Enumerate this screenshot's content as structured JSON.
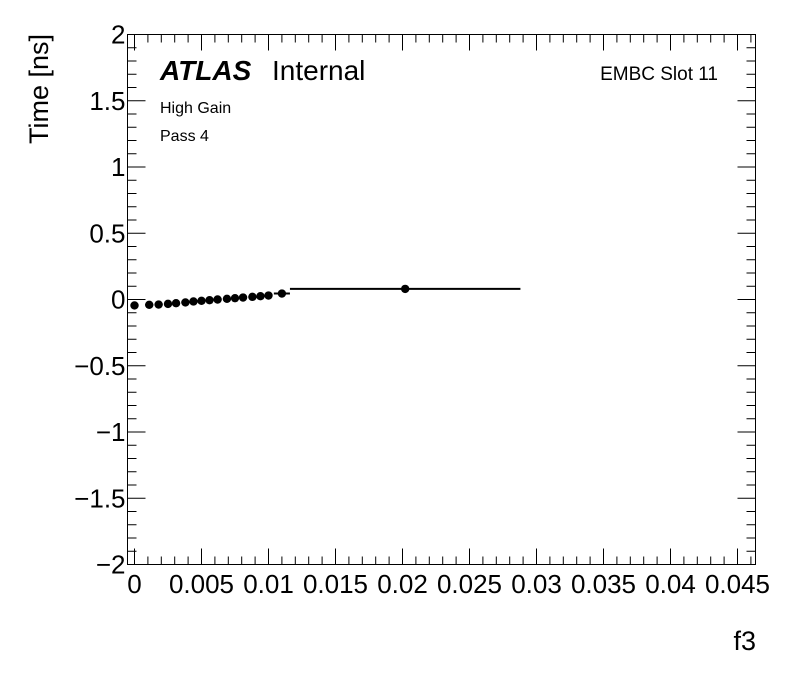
{
  "labels": {
    "experiment": "ATLAS",
    "status": "Internal",
    "slot": "EMBC Slot 11",
    "gain": "High Gain",
    "pass": "Pass 4"
  },
  "chart_data": {
    "type": "scatter",
    "title": "",
    "xlabel": "f3",
    "ylabel": "Time [ns]",
    "xlim": [
      0,
      0.046
    ],
    "ylim": [
      -2,
      2
    ],
    "x_ticks": [
      "0",
      "0.005",
      "0.01",
      "0.015",
      "0.02",
      "0.025",
      "0.03",
      "0.035",
      "0.04",
      "0.045"
    ],
    "y_ticks": [
      "−2",
      "−1.5",
      "−1",
      "−0.5",
      "0",
      "0.5",
      "1",
      "1.5",
      "2"
    ],
    "grid": false,
    "series": [
      {
        "points": [
          {
            "x": 0.0,
            "y": -0.045,
            "xerr": 0.0003
          },
          {
            "x": 0.0011,
            "y": -0.04,
            "xerr": 0.0003
          },
          {
            "x": 0.0018,
            "y": -0.038,
            "xerr": 0.0003
          },
          {
            "x": 0.0025,
            "y": -0.033,
            "xerr": 0.0003
          },
          {
            "x": 0.0031,
            "y": -0.028,
            "xerr": 0.0003
          },
          {
            "x": 0.0038,
            "y": -0.022,
            "xerr": 0.0003
          },
          {
            "x": 0.0044,
            "y": -0.015,
            "xerr": 0.0003
          },
          {
            "x": 0.005,
            "y": -0.01,
            "xerr": 0.0003
          },
          {
            "x": 0.0056,
            "y": -0.005,
            "xerr": 0.0003
          },
          {
            "x": 0.0062,
            "y": 0.0,
            "xerr": 0.0003
          },
          {
            "x": 0.0069,
            "y": 0.005,
            "xerr": 0.0003
          },
          {
            "x": 0.0075,
            "y": 0.01,
            "xerr": 0.0003
          },
          {
            "x": 0.0081,
            "y": 0.015,
            "xerr": 0.0003
          },
          {
            "x": 0.0088,
            "y": 0.02,
            "xerr": 0.0003
          },
          {
            "x": 0.0094,
            "y": 0.025,
            "xerr": 0.0003
          },
          {
            "x": 0.01,
            "y": 0.03,
            "xerr": 0.0003
          },
          {
            "x": 0.011,
            "y": 0.045,
            "xerr": 0.0006
          },
          {
            "x": 0.0202,
            "y": 0.08,
            "xerr": 0.0086
          }
        ]
      }
    ]
  }
}
